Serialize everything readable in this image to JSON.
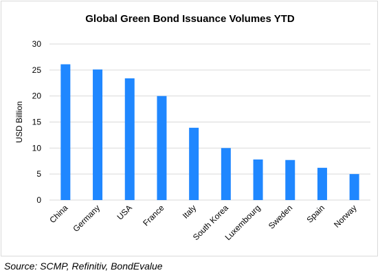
{
  "chart_data": {
    "type": "bar",
    "title": "Global Green Bond Issuance Volumes YTD",
    "ylabel": "USD Billion",
    "xlabel": "",
    "categories": [
      "China",
      "Germany",
      "USA",
      "France",
      "Italy",
      "South Korea",
      "Luxembourg",
      "Sweden",
      "Spain",
      "Norway"
    ],
    "values": [
      26.1,
      25.1,
      23.4,
      20.0,
      13.9,
      10.0,
      7.8,
      7.7,
      6.2,
      5.0
    ],
    "ylim": [
      0,
      30
    ],
    "yticks": [
      "0",
      "5",
      "10",
      "15",
      "20",
      "25",
      "30"
    ],
    "grid": true,
    "bar_color": "#1f87ff",
    "grid_color": "#d9d9d9"
  },
  "source": "Source: SCMP, Refinitiv, BondEvalue"
}
